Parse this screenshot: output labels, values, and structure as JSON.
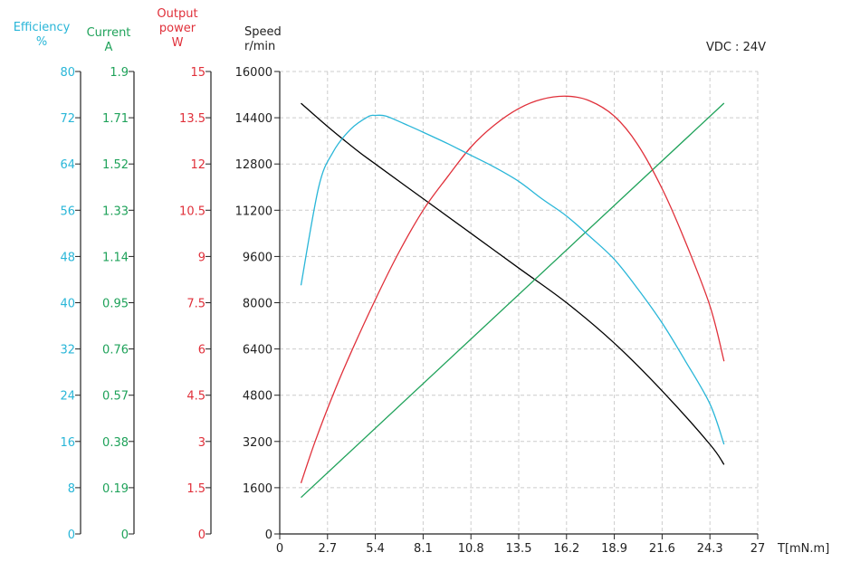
{
  "annotation": "VDC : 24V",
  "colors": {
    "efficiency": "#29B6D8",
    "current": "#1FA25A",
    "power": "#E0303A",
    "speed": "#000000",
    "axis": "#222222",
    "grid": "#CCCCCC"
  },
  "axes": {
    "efficiency": {
      "title": [
        "Efficiency",
        "%"
      ],
      "ticks": [
        "0",
        "8",
        "16",
        "24",
        "32",
        "40",
        "48",
        "56",
        "64",
        "72",
        "80"
      ],
      "range": [
        0,
        80
      ]
    },
    "current": {
      "title": [
        "Current",
        "A"
      ],
      "ticks": [
        "0",
        "0.19",
        "0.38",
        "0.57",
        "0.76",
        "0.95",
        "1.14",
        "1.33",
        "1.52",
        "1.71",
        "1.9"
      ],
      "range": [
        0,
        1.9
      ]
    },
    "power": {
      "title": [
        "Output",
        "power",
        "W"
      ],
      "ticks": [
        "0",
        "1.5",
        "3",
        "4.5",
        "6",
        "7.5",
        "9",
        "10.5",
        "12",
        "13.5",
        "15"
      ],
      "range": [
        0,
        15
      ]
    },
    "speed": {
      "title": [
        "Speed",
        "r/min"
      ],
      "ticks": [
        "0",
        "1600",
        "3200",
        "4800",
        "6400",
        "8000",
        "9600",
        "11200",
        "12800",
        "14400",
        "16000"
      ],
      "range": [
        0,
        16000
      ]
    },
    "x": {
      "label": "T[mN.m]",
      "ticks": [
        "0",
        "2.7",
        "5.4",
        "8.1",
        "10.8",
        "13.5",
        "16.2",
        "18.9",
        "21.6",
        "24.3",
        "27"
      ],
      "range": [
        0,
        27
      ]
    }
  },
  "chart_data": {
    "type": "line",
    "title": "",
    "annotation": "VDC : 24V",
    "xlabel": "T[mN.m]",
    "xlim": [
      0,
      27
    ],
    "grid": true,
    "series": [
      {
        "name": "Speed",
        "unit": "r/min",
        "axis": "speed",
        "color": "#000000",
        "x": [
          1.2,
          2.7,
          4.3,
          5.4,
          8.1,
          10.8,
          13.5,
          16.2,
          18.9,
          21.6,
          24.3,
          25.1
        ],
        "y": [
          14900,
          14100,
          13300,
          12800,
          11600,
          10400,
          9200,
          8000,
          6600,
          4950,
          3100,
          2400
        ]
      },
      {
        "name": "Current",
        "unit": "A",
        "axis": "current",
        "color": "#1FA25A",
        "x": [
          1.2,
          25.1
        ],
        "y": [
          0.15,
          1.77
        ]
      },
      {
        "name": "Output power",
        "unit": "W",
        "axis": "power",
        "color": "#E0303A",
        "x": [
          1.2,
          2.0,
          3.0,
          4.0,
          5.4,
          6.7,
          8.1,
          9.5,
          10.8,
          12.1,
          13.5,
          14.8,
          16.2,
          17.5,
          18.9,
          20.2,
          21.6,
          22.9,
          24.3,
          25.1
        ],
        "y": [
          1.65,
          3.0,
          4.5,
          5.85,
          7.6,
          9.1,
          10.5,
          11.6,
          12.55,
          13.25,
          13.8,
          14.1,
          14.2,
          14.05,
          13.55,
          12.65,
          11.2,
          9.5,
          7.4,
          5.6
        ]
      },
      {
        "name": "Efficiency",
        "unit": "%",
        "axis": "efficiency",
        "color": "#29B6D8",
        "x": [
          1.2,
          2.2,
          3.0,
          4.0,
          5.0,
          5.4,
          6.0,
          7.0,
          8.1,
          9.5,
          10.8,
          12.1,
          13.5,
          14.8,
          16.2,
          17.5,
          18.9,
          20.2,
          21.6,
          22.9,
          24.3,
          25.1
        ],
        "y": [
          43,
          60,
          66,
          70,
          72.2,
          72.4,
          72.3,
          71,
          69.5,
          67.5,
          65.5,
          63.5,
          61,
          58,
          55,
          51.5,
          47.5,
          42.5,
          36.5,
          30,
          22.5,
          15.5
        ]
      }
    ]
  }
}
